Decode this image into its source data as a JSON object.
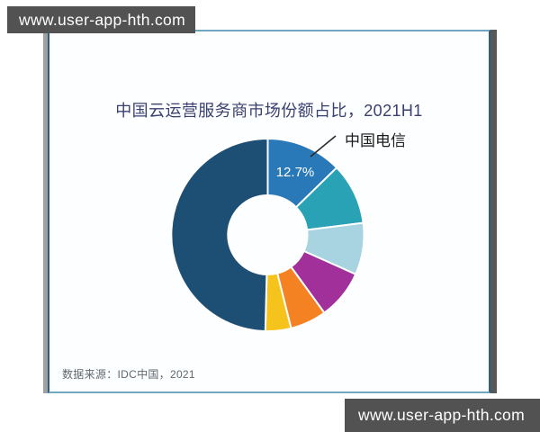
{
  "watermarks": {
    "top": "www.user-app-hth.com",
    "bottom": "www.user-app-hth.com"
  },
  "chart_data": {
    "type": "pie",
    "variant": "donut",
    "title": "中国云运营服务商市场份额占比，2021H1",
    "source_note": "数据来源：IDC中国，2021",
    "legend": "none",
    "start_at_top": true,
    "clockwise": true,
    "inner_radius_ratio": 0.41,
    "callout": {
      "label": "中国电信",
      "value_text": "12.7%"
    },
    "slices": [
      {
        "name": "中国电信",
        "value_pct": 12.7,
        "color": "#2979b9"
      },
      {
        "name": "",
        "value_pct": 10.3,
        "color": "#29a2b5"
      },
      {
        "name": "",
        "value_pct": 8.7,
        "color": "#a8d3e0"
      },
      {
        "name": "",
        "value_pct": 8.3,
        "color": "#a1309b"
      },
      {
        "name": "",
        "value_pct": 6.1,
        "color": "#f58222"
      },
      {
        "name": "",
        "value_pct": 4.3,
        "color": "#f5c31c"
      },
      {
        "name": "",
        "value_pct": 49.6,
        "color": "#1d4e73"
      }
    ]
  },
  "theme": {
    "page_bg": "#ffffff",
    "card_bg": "#fdfeff",
    "card_border_x": "#2e5f7e",
    "card_border_y": "#6fa7bf",
    "shadow_left": "#a0a0a0",
    "shadow_right": "#585858",
    "watermark_bg": "#525252",
    "watermark_text": "#ffffff",
    "title_color": "#3a4070",
    "callout_color": "#1c1c1c",
    "value_label_color": "#ffffff",
    "source_color": "#60686f"
  }
}
